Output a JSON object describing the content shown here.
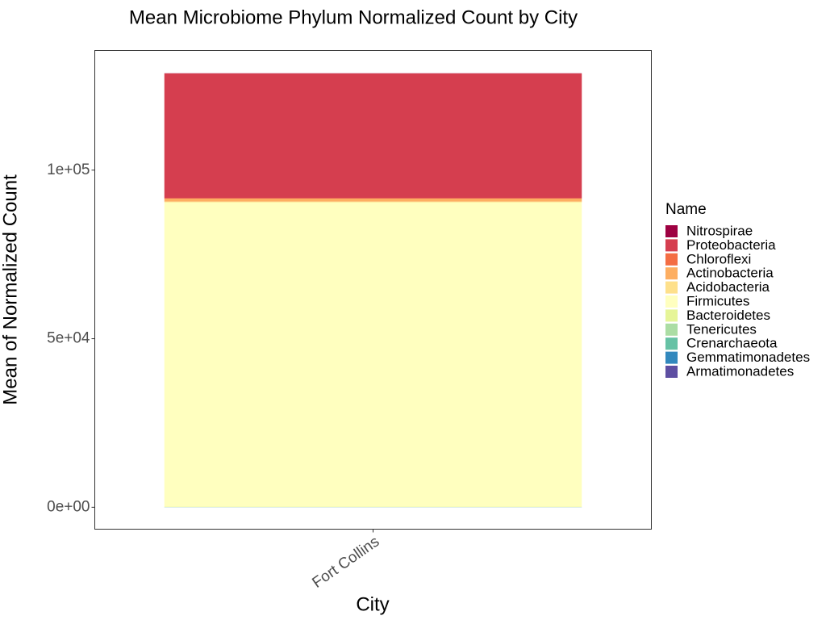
{
  "chart_data": {
    "type": "bar",
    "stacked": true,
    "title": "Mean Microbiome Phylum Normalized Count by City",
    "xlabel": "City",
    "ylabel": "Mean of Normalized Count",
    "categories": [
      "Fort Collins"
    ],
    "ylim": [
      -6500,
      135500
    ],
    "yticks": [
      0,
      50000,
      100000
    ],
    "ytick_labels": [
      "0e+00",
      "5e+04",
      "1e+05"
    ],
    "grid": false,
    "legend": {
      "title": "Name",
      "position": "right"
    },
    "series": [
      {
        "name": "Nitrospirae",
        "color": "#9E0142",
        "values": [
          50
        ]
      },
      {
        "name": "Proteobacteria",
        "color": "#D53E4F",
        "values": [
          37000
        ]
      },
      {
        "name": "Chloroflexi",
        "color": "#F46D43",
        "values": [
          100
        ]
      },
      {
        "name": "Actinobacteria",
        "color": "#FDAE61",
        "values": [
          900
        ]
      },
      {
        "name": "Acidobacteria",
        "color": "#FEE08B",
        "values": [
          200
        ]
      },
      {
        "name": "Firmicutes",
        "color": "#FFFFBF",
        "values": [
          90300
        ]
      },
      {
        "name": "Bacteroidetes",
        "color": "#E6F598",
        "values": [
          100
        ]
      },
      {
        "name": "Tenericutes",
        "color": "#ABDDA4",
        "values": [
          30
        ]
      },
      {
        "name": "Crenarchaeota",
        "color": "#66C2A5",
        "values": [
          20
        ]
      },
      {
        "name": "Gemmatimonadetes",
        "color": "#3288BD",
        "values": [
          20
        ]
      },
      {
        "name": "Armatimonadetes",
        "color": "#5E4FA2",
        "values": [
          10
        ]
      }
    ]
  }
}
